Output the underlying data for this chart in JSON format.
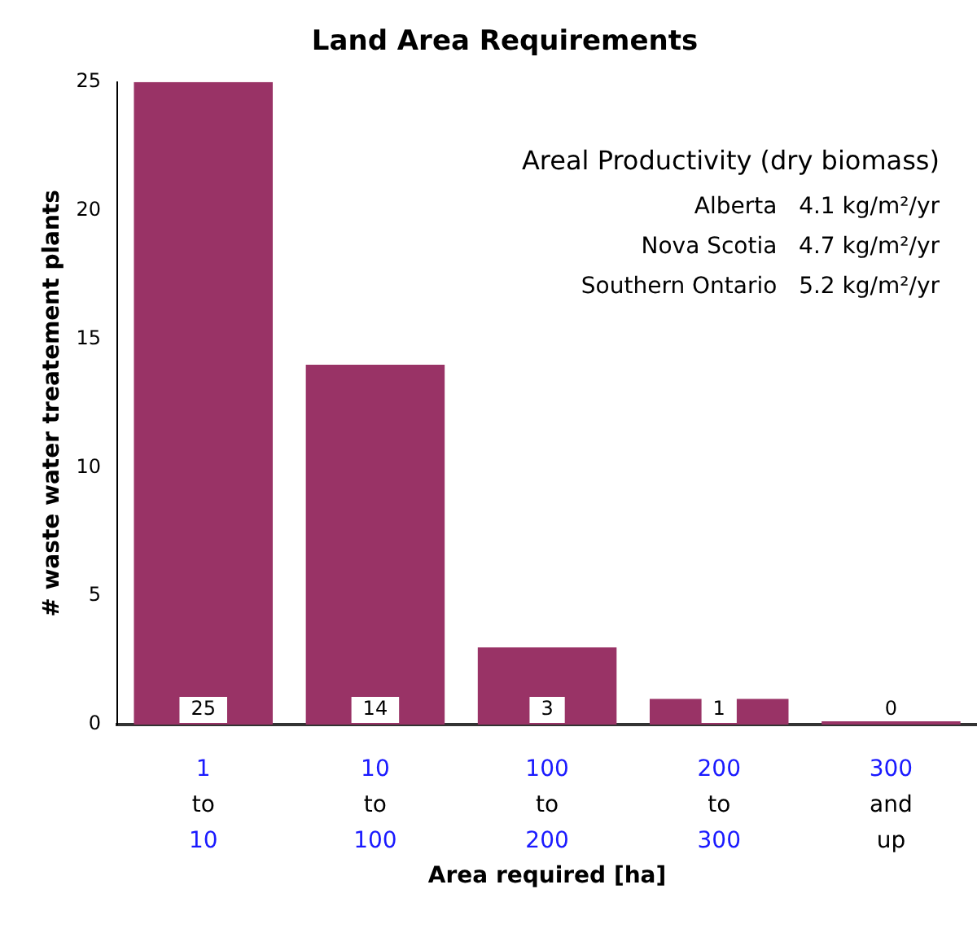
{
  "chart_data": {
    "type": "bar",
    "title": "Land Area Requirements",
    "xlabel": "Area required [ha]",
    "ylabel": "# waste water treatement plants",
    "categories": [
      "1 to 10",
      "10 to 100",
      "100 to 200",
      "200 to 300",
      "300 and up"
    ],
    "values": [
      25,
      14,
      3,
      1,
      0
    ],
    "color": "#993366",
    "ylim": [
      0,
      25
    ],
    "yticks": [
      0,
      5,
      10,
      15,
      20,
      25
    ],
    "grid": false,
    "legend": false,
    "data_labels": true,
    "annotations": [
      "Areal Productivity (dry biomass)",
      "Alberta   4.1 kg/m²/yr",
      "Nova Scotia   4.7 kg/m²/yr",
      "Southern Ontario   5.2 kg/m²/yr"
    ]
  }
}
